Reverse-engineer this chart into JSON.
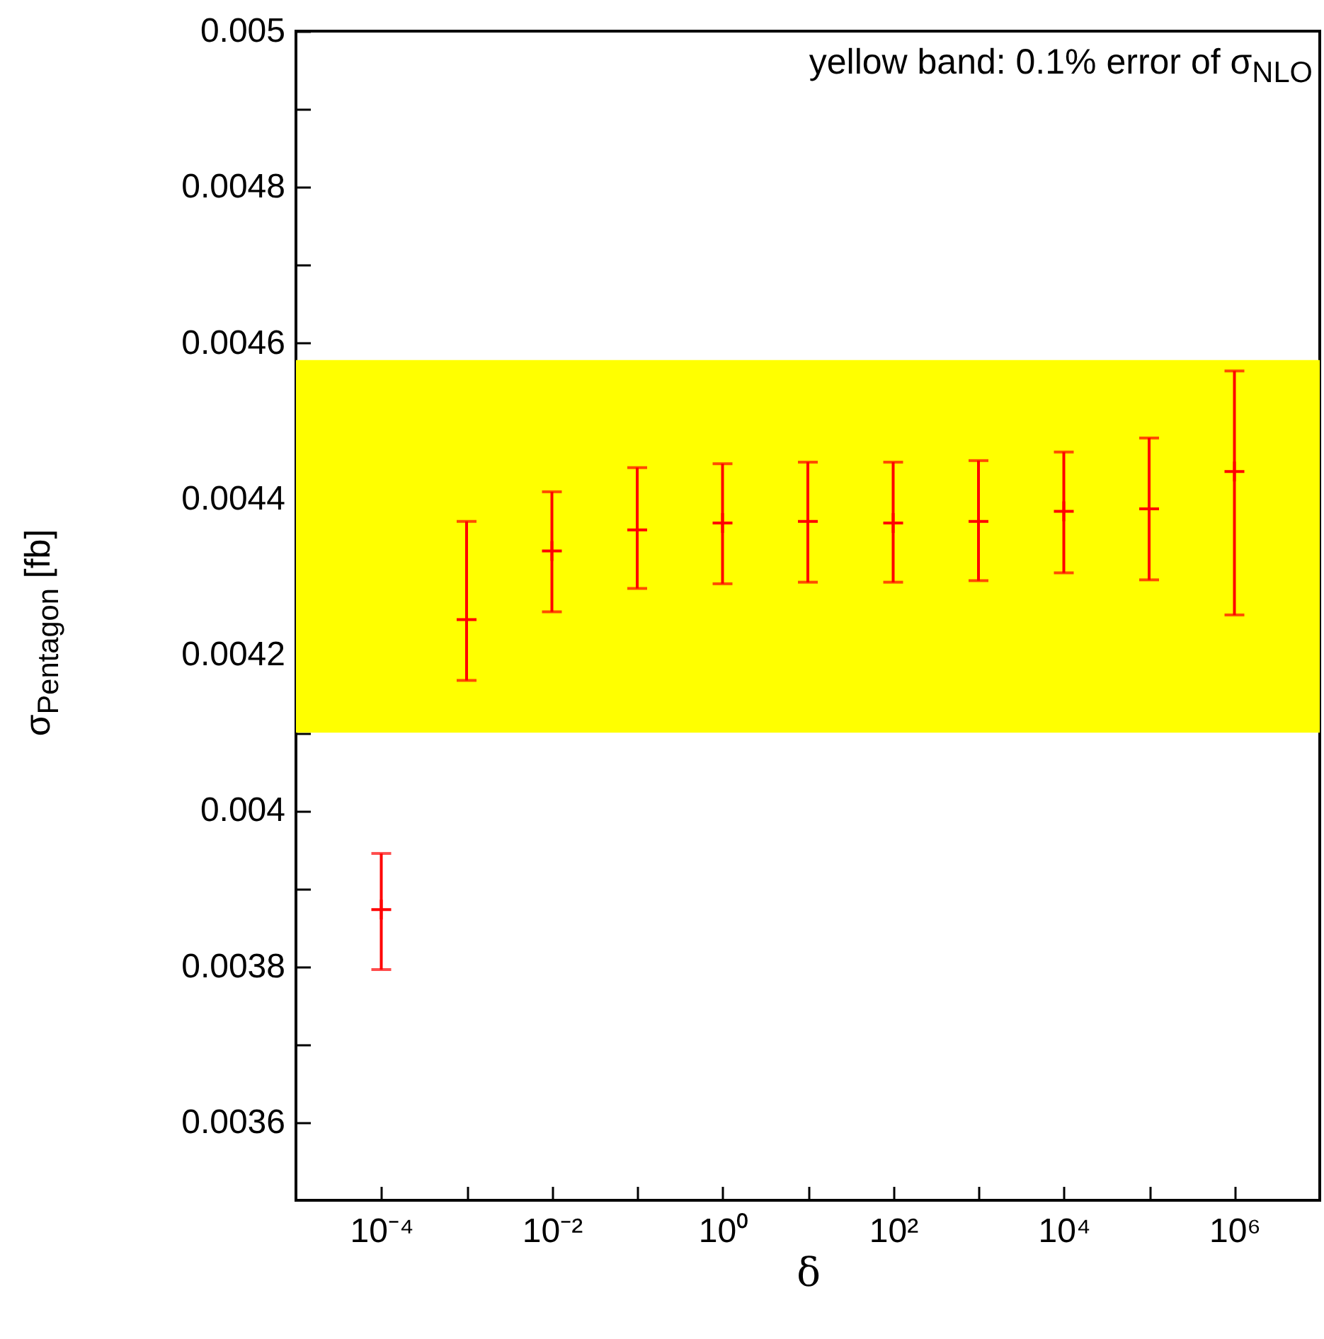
{
  "chart_data": {
    "type": "scatter",
    "xlabel": "δ",
    "ylabel": "σ$_{Pentagon}$ [fb]",
    "log": "x",
    "grid": false,
    "marker": "cross",
    "annotations": [
      "yellow band: 0.1% error of σ$_{NLO}$"
    ],
    "x": [
      0.0001,
      0.001,
      0.01,
      0.1,
      1,
      10,
      100,
      1000,
      10000,
      100000,
      1000000
    ],
    "series": [
      {
        "color": "#ff0000",
        "values": [
          0.003873,
          0.004245,
          0.004333,
          0.00436,
          0.004369,
          0.004371,
          0.004369,
          0.004371,
          0.004384,
          0.004387,
          0.004435
        ],
        "errors": [
          [
            0.003796,
            0.003945
          ],
          [
            0.004167,
            0.004371
          ],
          [
            0.004255,
            0.004409
          ],
          [
            0.004285,
            0.00444
          ],
          [
            0.004291,
            0.004445
          ],
          [
            0.004293,
            0.004447
          ],
          [
            0.004293,
            0.004447
          ],
          [
            0.004295,
            0.004449
          ],
          [
            0.004305,
            0.00446
          ],
          [
            0.004296,
            0.004478
          ],
          [
            0.004251,
            0.004564
          ]
        ]
      }
    ],
    "bands": [
      {
        "axis": "y",
        "from": 0.0041,
        "to": 0.004578,
        "color": "#ffff00"
      }
    ],
    "xlim": [
      1e-05,
      10000000
    ],
    "xticks": [
      {
        "value": 0.0001,
        "label": "10⁻⁴"
      },
      {
        "value": 0.001,
        "label": null
      },
      {
        "value": 0.01,
        "label": "10⁻²"
      },
      {
        "value": 0.1,
        "label": null
      },
      {
        "value": 1,
        "label": "10⁰"
      },
      {
        "value": 10,
        "label": null
      },
      {
        "value": 100,
        "label": "10²"
      },
      {
        "value": 1000,
        "label": null
      },
      {
        "value": 10000,
        "label": "10⁴"
      },
      {
        "value": 100000,
        "label": null
      },
      {
        "value": 1000000,
        "label": "10⁶"
      }
    ],
    "ylim": [
      0.0035,
      0.005
    ],
    "yticks": [
      0.0036,
      {
        "value": 0.0037,
        "label": null
      },
      0.0038,
      {
        "value": 0.0039,
        "label": null
      },
      0.004,
      {
        "value": 0.0041,
        "label": null
      },
      0.0042,
      {
        "value": 0.0043,
        "label": null
      },
      0.0044,
      {
        "value": 0.0045,
        "label": null
      },
      0.0046,
      {
        "value": 0.0047,
        "label": null
      },
      0.0048,
      {
        "value": 0.0049,
        "label": null
      },
      0.005
    ]
  }
}
